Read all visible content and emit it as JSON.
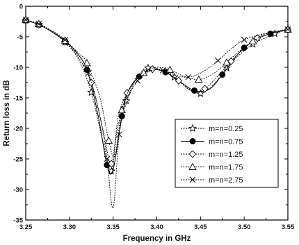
{
  "chart_data": {
    "type": "line",
    "title": "",
    "xlabel": "Frequency in GHz",
    "ylabel": "Return loss in dB",
    "xlim": [
      3.25,
      3.55
    ],
    "ylim": [
      -35,
      0
    ],
    "xticks": [
      "3.25",
      "3.30",
      "3.35",
      "3.40",
      "3.45",
      "3.50",
      "3.55"
    ],
    "yticks": [
      "0",
      "-5",
      "-10",
      "-15",
      "-20",
      "-25",
      "-30",
      "-35"
    ],
    "grid": false,
    "legend_position": "right-middle",
    "series": [
      {
        "name": "m=n=0.25",
        "marker": "star",
        "x": [
          3.25,
          3.265,
          3.28,
          3.295,
          3.31,
          3.325,
          3.338,
          3.348,
          3.355,
          3.365,
          3.378,
          3.39,
          3.405,
          3.42,
          3.435,
          3.45,
          3.465,
          3.48,
          3.495,
          3.51,
          3.525,
          3.535,
          3.55
        ],
        "y": [
          -2.3,
          -3.0,
          -4.2,
          -5.9,
          -8.6,
          -14.1,
          -22.0,
          -27.0,
          -20.0,
          -15.5,
          -11.5,
          -10.1,
          -10.4,
          -11.6,
          -13.4,
          -14.3,
          -12.8,
          -10.1,
          -7.9,
          -6.2,
          -5.1,
          -4.5,
          -3.8
        ]
      },
      {
        "name": "m=n=0.75",
        "marker": "filled-circle",
        "x": [
          3.25,
          3.265,
          3.28,
          3.295,
          3.307,
          3.32,
          3.333,
          3.343,
          3.35,
          3.36,
          3.368,
          3.38,
          3.395,
          3.41,
          3.428,
          3.443,
          3.46,
          3.475,
          3.488,
          3.5,
          3.515,
          3.53,
          3.55
        ],
        "y": [
          -2.3,
          -3.0,
          -4.2,
          -5.7,
          -7.4,
          -10.4,
          -18.0,
          -26.0,
          -26.8,
          -18.0,
          -13.7,
          -11.5,
          -10.4,
          -10.8,
          -12.5,
          -13.8,
          -13.6,
          -11.2,
          -8.7,
          -6.8,
          -5.3,
          -4.5,
          -3.8
        ]
      },
      {
        "name": "m=n=1.25",
        "marker": "diamond",
        "x": [
          3.25,
          3.265,
          3.28,
          3.295,
          3.31,
          3.325,
          3.338,
          3.348,
          3.356,
          3.366,
          3.38,
          3.395,
          3.41,
          3.425,
          3.44,
          3.455,
          3.47,
          3.485,
          3.5,
          3.515,
          3.53,
          3.55
        ],
        "y": [
          -2.3,
          -3.0,
          -4.2,
          -5.8,
          -8.3,
          -12.5,
          -20.0,
          -25.8,
          -18.0,
          -14.2,
          -11.4,
          -10.3,
          -10.7,
          -12.2,
          -13.9,
          -13.5,
          -11.4,
          -9.0,
          -6.9,
          -5.2,
          -4.3,
          -3.8
        ]
      },
      {
        "name": "m=n=1.75",
        "marker": "triangle",
        "x": [
          3.25,
          3.265,
          3.28,
          3.295,
          3.31,
          3.32,
          3.335,
          3.345,
          3.352,
          3.36,
          3.37,
          3.385,
          3.4,
          3.415,
          3.43,
          3.448,
          3.465,
          3.48,
          3.495,
          3.51,
          3.525,
          3.55
        ],
        "y": [
          -2.2,
          -2.9,
          -4.1,
          -5.6,
          -7.6,
          -9.3,
          -15.0,
          -22.0,
          -24.5,
          -17.0,
          -13.3,
          -10.9,
          -10.0,
          -10.4,
          -11.4,
          -12.0,
          -11.0,
          -9.2,
          -7.3,
          -5.7,
          -4.7,
          -3.8
        ]
      },
      {
        "name": "m=n=2.75",
        "marker": "x",
        "x": [
          3.25,
          3.265,
          3.28,
          3.295,
          3.31,
          3.322,
          3.335,
          3.343,
          3.35,
          3.357,
          3.366,
          3.378,
          3.392,
          3.407,
          3.422,
          3.436,
          3.452,
          3.47,
          3.485,
          3.5,
          3.52,
          3.55
        ],
        "y": [
          -2.2,
          -2.9,
          -4.0,
          -5.5,
          -7.9,
          -10.9,
          -18.0,
          -25.0,
          -33.0,
          -21.0,
          -15.5,
          -12.2,
          -10.6,
          -10.5,
          -11.3,
          -11.6,
          -10.8,
          -8.9,
          -7.0,
          -5.5,
          -4.6,
          -3.8
        ]
      }
    ]
  }
}
